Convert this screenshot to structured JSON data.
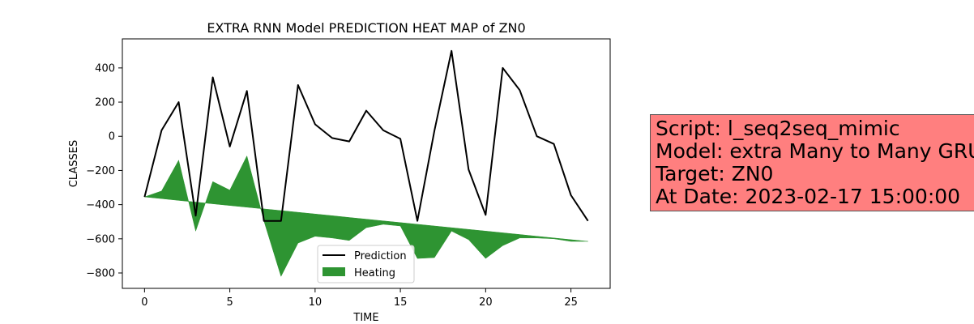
{
  "chart_data": {
    "type": "line",
    "title": "EXTRA RNN Model PREDICTION HEAT MAP of ZN0",
    "xlabel": "TIME",
    "ylabel": "CLASSES",
    "xlim": [
      -1.3,
      27.3
    ],
    "ylim": [
      -890,
      570
    ],
    "xticks": [
      0,
      5,
      10,
      15,
      20,
      25
    ],
    "yticks": [
      -800,
      -600,
      -400,
      -200,
      0,
      200,
      400
    ],
    "grid": false,
    "legend_position": "lower center",
    "x": [
      0,
      1,
      2,
      3,
      4,
      5,
      6,
      7,
      8,
      9,
      10,
      11,
      12,
      13,
      14,
      15,
      16,
      17,
      18,
      19,
      20,
      21,
      22,
      23,
      24,
      25,
      26
    ],
    "series": [
      {
        "name": "Prediction",
        "kind": "line",
        "color": "#000000",
        "values": [
          -355,
          35,
          200,
          -465,
          345,
          -60,
          265,
          -495,
          -495,
          300,
          70,
          -10,
          -30,
          150,
          35,
          -15,
          -495,
          35,
          500,
          -195,
          -460,
          400,
          270,
          0,
          -45,
          -345,
          -495
        ]
      },
      {
        "name": "Heating",
        "kind": "fill_between",
        "color": "#2e9432",
        "baseline": [
          -355,
          -365,
          -375,
          -385,
          -395,
          -405,
          -415,
          -425,
          -435,
          -445,
          -455,
          -465,
          -475,
          -485,
          -495,
          -505,
          -515,
          -525,
          -535,
          -545,
          -555,
          -565,
          -575,
          -585,
          -595,
          -605,
          -615
        ],
        "values": [
          -355,
          -320,
          -140,
          -555,
          -265,
          -315,
          -115,
          -495,
          -820,
          -625,
          -585,
          -595,
          -610,
          -535,
          -515,
          -525,
          -715,
          -710,
          -555,
          -605,
          -715,
          -640,
          -595,
          -595,
          -600,
          -615,
          -615
        ]
      }
    ]
  },
  "info": {
    "script": "Script: l_seq2seq_mimic",
    "model": "Model: extra Many to Many GRU",
    "target": "Target: ZN0",
    "date": "At Date: 2023-02-17 15:00:00"
  }
}
